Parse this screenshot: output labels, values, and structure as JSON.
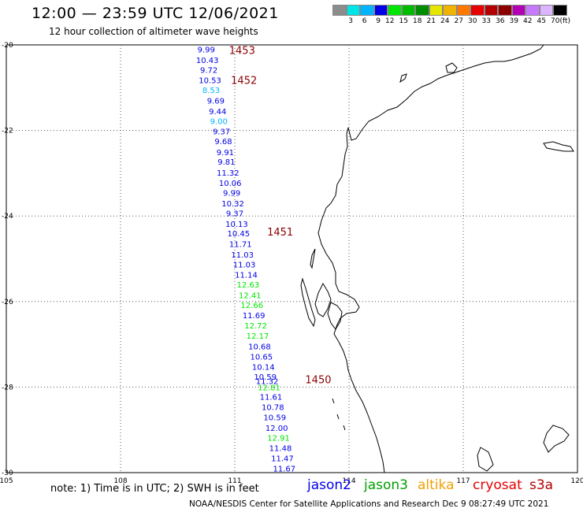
{
  "header": {
    "title": "12:00 — 23:59 UTC 12/06/2021",
    "subtitle": "12 hour collection of altimeter wave heights"
  },
  "scale": {
    "unit": "(ft)",
    "colors": [
      "#8c8c8c",
      "#00e6e6",
      "#00b4ff",
      "#0000e6",
      "#00e600",
      "#00bc00",
      "#008c00",
      "#e6e600",
      "#f0b400",
      "#ff7800",
      "#e60000",
      "#b40000",
      "#8c0000",
      "#b400b4",
      "#c878ff",
      "#dcb4ff",
      "#000000"
    ],
    "labels": [
      "3",
      "6",
      "9",
      "12",
      "15",
      "18",
      "21",
      "24",
      "27",
      "30",
      "33",
      "36",
      "39",
      "42",
      "45",
      "70"
    ]
  },
  "map": {
    "lon_ticks": [
      "105",
      "108",
      "111",
      "114",
      "117",
      "120"
    ],
    "lat_ticks": [
      "-20",
      "-22",
      "-24",
      "-26",
      "-28",
      "-30"
    ],
    "pass_labels": [
      {
        "text": "1453",
        "lon": 110.85,
        "lat": -20.1
      },
      {
        "text": "1452",
        "lon": 110.9,
        "lat": -20.8
      },
      {
        "text": "1451",
        "lon": 111.85,
        "lat": -24.35
      },
      {
        "text": "1450",
        "lon": 112.85,
        "lat": -27.8
      }
    ],
    "observations": [
      {
        "v": "9.99",
        "lon": 110.25,
        "lat": -20.1,
        "c": "#0000e6"
      },
      {
        "v": "10.43",
        "lon": 110.28,
        "lat": -20.35,
        "c": "#0000e6"
      },
      {
        "v": "9.72",
        "lon": 110.32,
        "lat": -20.58,
        "c": "#0000e6"
      },
      {
        "v": "10.53",
        "lon": 110.35,
        "lat": -20.82,
        "c": "#0000e6"
      },
      {
        "v": "8.53",
        "lon": 110.38,
        "lat": -21.05,
        "c": "#00b4ff"
      },
      {
        "v": "9.69",
        "lon": 110.5,
        "lat": -21.3,
        "c": "#0000e6"
      },
      {
        "v": "9.44",
        "lon": 110.55,
        "lat": -21.55,
        "c": "#0000e6"
      },
      {
        "v": "9.00",
        "lon": 110.58,
        "lat": -21.78,
        "c": "#00b4ff"
      },
      {
        "v": "9.37",
        "lon": 110.65,
        "lat": -22.02,
        "c": "#0000e6"
      },
      {
        "v": "9.68",
        "lon": 110.7,
        "lat": -22.25,
        "c": "#0000e6"
      },
      {
        "v": "9.91",
        "lon": 110.75,
        "lat": -22.5,
        "c": "#0000e6"
      },
      {
        "v": "9.81",
        "lon": 110.78,
        "lat": -22.73,
        "c": "#0000e6"
      },
      {
        "v": "11.32",
        "lon": 110.82,
        "lat": -22.98,
        "c": "#0000e6"
      },
      {
        "v": "10.06",
        "lon": 110.88,
        "lat": -23.22,
        "c": "#0000e6"
      },
      {
        "v": "9.99",
        "lon": 110.92,
        "lat": -23.45,
        "c": "#0000e6"
      },
      {
        "v": "10.32",
        "lon": 110.95,
        "lat": -23.7,
        "c": "#0000e6"
      },
      {
        "v": "9.37",
        "lon": 111.0,
        "lat": -23.93,
        "c": "#0000e6"
      },
      {
        "v": "10.13",
        "lon": 111.05,
        "lat": -24.18,
        "c": "#0000e6"
      },
      {
        "v": "10.45",
        "lon": 111.1,
        "lat": -24.4,
        "c": "#0000e6"
      },
      {
        "v": "11.71",
        "lon": 111.15,
        "lat": -24.65,
        "c": "#0000e6"
      },
      {
        "v": "11.03",
        "lon": 111.2,
        "lat": -24.9,
        "c": "#0000e6"
      },
      {
        "v": "11.03",
        "lon": 111.25,
        "lat": -25.13,
        "c": "#0000e6"
      },
      {
        "v": "11.14",
        "lon": 111.3,
        "lat": -25.37,
        "c": "#0000e6"
      },
      {
        "v": "12.63",
        "lon": 111.35,
        "lat": -25.6,
        "c": "#00e600"
      },
      {
        "v": "12.41",
        "lon": 111.4,
        "lat": -25.85,
        "c": "#00e600"
      },
      {
        "v": "12.66",
        "lon": 111.45,
        "lat": -26.08,
        "c": "#00e600"
      },
      {
        "v": "11.69",
        "lon": 111.5,
        "lat": -26.32,
        "c": "#0000e6"
      },
      {
        "v": "12.72",
        "lon": 111.55,
        "lat": -26.56,
        "c": "#00e600"
      },
      {
        "v": "12.17",
        "lon": 111.6,
        "lat": -26.8,
        "c": "#00e600"
      },
      {
        "v": "10.68",
        "lon": 111.65,
        "lat": -27.04,
        "c": "#0000e6"
      },
      {
        "v": "10.65",
        "lon": 111.7,
        "lat": -27.28,
        "c": "#0000e6"
      },
      {
        "v": "10.14",
        "lon": 111.75,
        "lat": -27.52,
        "c": "#0000e6"
      },
      {
        "v": "10.59",
        "lon": 111.8,
        "lat": -27.75,
        "c": "#0000e6"
      },
      {
        "v": "11.32",
        "lon": 111.85,
        "lat": -27.85,
        "c": "#0000e6"
      },
      {
        "v": "12.81",
        "lon": 111.9,
        "lat": -28.0,
        "c": "#00e600"
      },
      {
        "v": "11.61",
        "lon": 111.95,
        "lat": -28.22,
        "c": "#0000e6"
      },
      {
        "v": "10.78",
        "lon": 112.0,
        "lat": -28.46,
        "c": "#0000e6"
      },
      {
        "v": "10.59",
        "lon": 112.05,
        "lat": -28.7,
        "c": "#0000e6"
      },
      {
        "v": "12.00",
        "lon": 112.1,
        "lat": -28.95,
        "c": "#0000e6"
      },
      {
        "v": "12.91",
        "lon": 112.15,
        "lat": -29.18,
        "c": "#00e600"
      },
      {
        "v": "11.48",
        "lon": 112.2,
        "lat": -29.42,
        "c": "#0000e6"
      },
      {
        "v": "11.47",
        "lon": 112.25,
        "lat": -29.66,
        "c": "#0000e6"
      },
      {
        "v": "11.67",
        "lon": 112.3,
        "lat": -29.9,
        "c": "#0000e6"
      }
    ]
  },
  "note": "note:  1) Time is in UTC;  2) SWH is in feet",
  "satellites": [
    {
      "name": "jason2",
      "color": "#0000e6"
    },
    {
      "name": "jason3",
      "color": "#00a000"
    },
    {
      "name": "altika",
      "color": "#f0a000"
    },
    {
      "name": "cryosat",
      "color": "#e60000"
    },
    {
      "name": "s3a",
      "color": "#b40000"
    }
  ],
  "footer": "NOAA/NESDIS Center for Satellite Applications and Research    Dec  9 08:27:49 UTC 2021"
}
